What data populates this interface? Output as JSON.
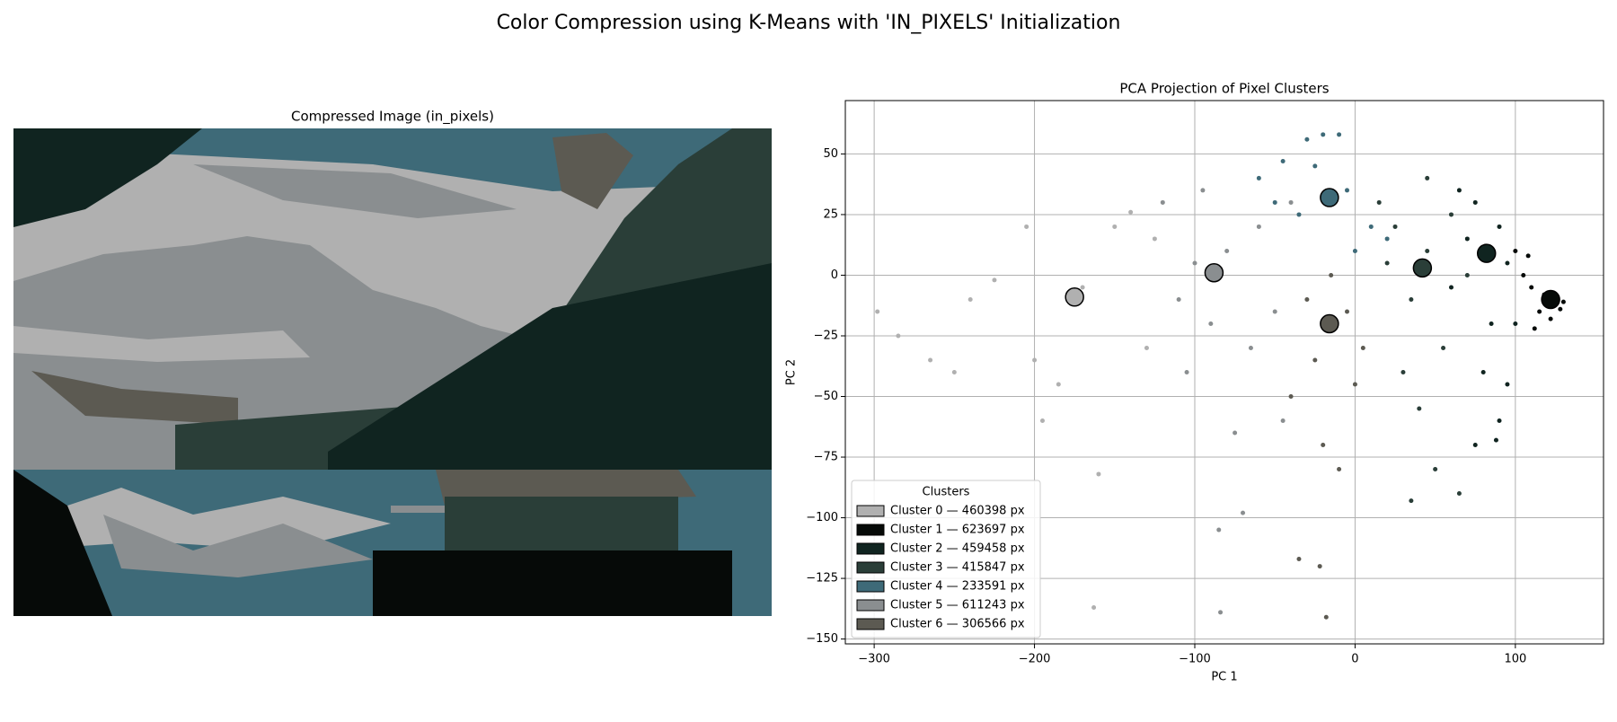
{
  "title": "Color Compression using K-Means with 'IN_PIXELS' Initialization",
  "image": {
    "title": "Compressed Image (in_pixels)"
  },
  "chart_data": {
    "type": "scatter",
    "title": "PCA Projection of Pixel Clusters",
    "xlabel": "PC 1",
    "ylabel": "PC 2",
    "xlim": [
      -318,
      155
    ],
    "ylim": [
      -152,
      72
    ],
    "xticks": [
      {
        "value": -300,
        "label": "−300"
      },
      {
        "value": -200,
        "label": "−200"
      },
      {
        "value": -100,
        "label": "−100"
      },
      0,
      100
    ],
    "yticks": [
      {
        "value": -150,
        "label": "−150"
      },
      {
        "value": -125,
        "label": "−125"
      },
      {
        "value": -100,
        "label": "−100"
      },
      {
        "value": -75,
        "label": "−75"
      },
      {
        "value": -50,
        "label": "−50"
      },
      {
        "value": -25,
        "label": "−25"
      },
      0,
      25,
      50
    ],
    "grid": true,
    "legend_title": "Clusters",
    "legend_position": "lower left",
    "series": [
      {
        "name": "Cluster 0 — 460398 px",
        "color": "#b0b0b0",
        "center_x": -175,
        "center_y": -9,
        "x": [
          -298,
          -285,
          -265,
          -250,
          -240,
          -225,
          -205,
          -195,
          -185,
          -170,
          -160,
          -163,
          -150,
          -140,
          -130,
          -125,
          -200
        ],
        "values": [
          -15,
          -25,
          -35,
          -40,
          -10,
          -2,
          20,
          -60,
          -45,
          -5,
          -82,
          -137,
          20,
          26,
          -30,
          15,
          -35
        ]
      },
      {
        "name": "Cluster 1 — 623697 px",
        "color": "#060a08",
        "center_x": 122,
        "center_y": -10,
        "x": [
          105,
          110,
          115,
          118,
          120,
          125,
          128,
          130,
          112,
          108,
          122,
          100
        ],
        "values": [
          0,
          -5,
          -15,
          -8,
          -12,
          -10,
          -14,
          -11,
          -22,
          8,
          -18,
          10
        ]
      },
      {
        "name": "Cluster 2 — 459458 px",
        "color": "#102420",
        "center_x": 82,
        "center_y": 9,
        "x": [
          60,
          70,
          75,
          85,
          90,
          95,
          80,
          90,
          100,
          88,
          75,
          65,
          95
        ],
        "values": [
          -5,
          15,
          30,
          -20,
          20,
          5,
          -40,
          -60,
          -20,
          -68,
          -70,
          35,
          -45
        ]
      },
      {
        "name": "Cluster 3 — 415847 px",
        "color": "#2a3e38",
        "center_x": 42,
        "center_y": 3,
        "x": [
          15,
          25,
          35,
          45,
          55,
          60,
          40,
          30,
          50,
          65,
          35,
          20,
          70,
          45
        ],
        "values": [
          30,
          20,
          -10,
          10,
          -30,
          25,
          -55,
          -40,
          -80,
          -90,
          -93,
          5,
          0,
          40
        ]
      },
      {
        "name": "Cluster 4 — 233591 px",
        "color": "#3e6a78",
        "center_x": -16,
        "center_y": 32,
        "x": [
          -60,
          -45,
          -30,
          -20,
          -10,
          -35,
          -5,
          10,
          20,
          -25,
          -50,
          0
        ],
        "values": [
          40,
          47,
          56,
          58,
          58,
          25,
          35,
          20,
          15,
          45,
          30,
          10
        ]
      },
      {
        "name": "Cluster 5 — 611243 px",
        "color": "#8a8e90",
        "center_x": -88,
        "center_y": 1,
        "x": [
          -120,
          -110,
          -100,
          -90,
          -85,
          -80,
          -75,
          -70,
          -60,
          -50,
          -45,
          -40,
          -95,
          -105,
          -84,
          -65
        ],
        "values": [
          30,
          -10,
          5,
          -20,
          -105,
          10,
          -65,
          -98,
          20,
          -15,
          -60,
          30,
          35,
          -40,
          -139,
          -30
        ]
      },
      {
        "name": "Cluster 6 — 306566 px",
        "color": "#5c5a52",
        "center_x": -16,
        "center_y": -20,
        "x": [
          -40,
          -30,
          -25,
          -20,
          -18,
          -10,
          -5,
          5,
          -22,
          -35,
          -15,
          0
        ],
        "values": [
          -50,
          -10,
          -35,
          -70,
          -141,
          -80,
          -15,
          -30,
          -120,
          -117,
          0,
          -45
        ]
      }
    ]
  }
}
